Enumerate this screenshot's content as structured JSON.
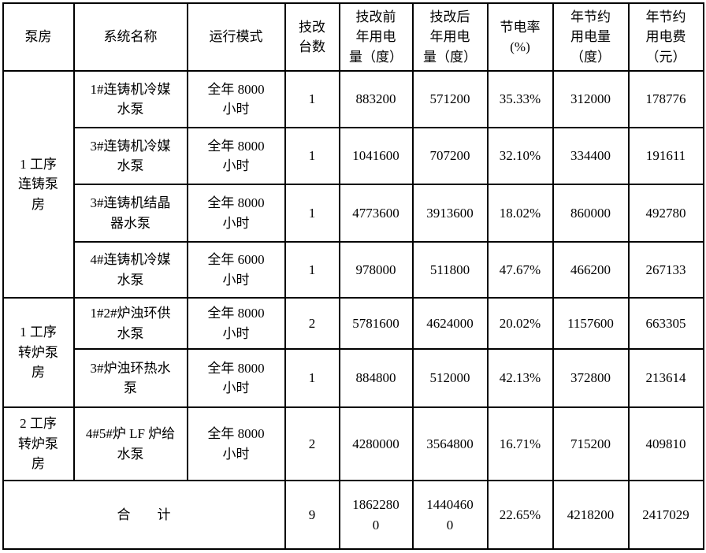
{
  "page": {
    "background_color": "#ffffff",
    "border_color": "#000000",
    "text_color": "#000000"
  },
  "table": {
    "columns": [
      {
        "label": "泵房"
      },
      {
        "label": "系统名称"
      },
      {
        "label": "运行模式"
      },
      {
        "label": "技改\n台数"
      },
      {
        "label": "技改前\n年用电\n量（度）"
      },
      {
        "label": "技改后\n年用电\n量（度）"
      },
      {
        "label": "节电率\n(%)"
      },
      {
        "label": "年节约\n用电量\n（度）"
      },
      {
        "label": "年节约\n用电费\n（元）"
      }
    ],
    "groups": [
      {
        "name": "1 工序\n连铸泵\n房",
        "rows": [
          {
            "system": "1#连铸机冷媒\n水泵",
            "mode": "全年 8000\n小时",
            "units": "1",
            "before": "883200",
            "after": "571200",
            "rate": "35.33%",
            "saving_kwh": "312000",
            "saving_fee": "178776"
          },
          {
            "system": "3#连铸机冷媒\n水泵",
            "mode": "全年 8000\n小时",
            "units": "1",
            "before": "1041600",
            "after": "707200",
            "rate": "32.10%",
            "saving_kwh": "334400",
            "saving_fee": "191611"
          },
          {
            "system": "3#连铸机结晶\n器水泵",
            "mode": "全年 8000\n小时",
            "units": "1",
            "before": "4773600",
            "after": "3913600",
            "rate": "18.02%",
            "saving_kwh": "860000",
            "saving_fee": "492780"
          },
          {
            "system": "4#连铸机冷媒\n水泵",
            "mode": "全年 6000\n小时",
            "units": "1",
            "before": "978000",
            "after": "511800",
            "rate": "47.67%",
            "saving_kwh": "466200",
            "saving_fee": "267133"
          }
        ]
      },
      {
        "name": "1 工序\n转炉泵\n房",
        "rows": [
          {
            "system": "1#2#炉浊环供\n水泵",
            "mode": "全年 8000\n小时",
            "units": "2",
            "before": "5781600",
            "after": "4624000",
            "rate": "20.02%",
            "saving_kwh": "1157600",
            "saving_fee": "663305"
          },
          {
            "system": "3#炉浊环热水\n泵",
            "mode": "全年 8000\n小时",
            "units": "1",
            "before": "884800",
            "after": "512000",
            "rate": "42.13%",
            "saving_kwh": "372800",
            "saving_fee": "213614"
          }
        ]
      },
      {
        "name": "2 工序\n转炉泵\n房",
        "rows": [
          {
            "system": "4#5#炉 LF 炉给\n水泵",
            "mode": "全年 8000\n小时",
            "units": "2",
            "before": "4280000",
            "after": "3564800",
            "rate": "16.71%",
            "saving_kwh": "715200",
            "saving_fee": "409810"
          }
        ]
      }
    ],
    "total": {
      "label": "合　　计",
      "units": "9",
      "before": "18622800",
      "after": "14404600",
      "rate": "22.65%",
      "saving_kwh": "4218200",
      "saving_fee": "2417029"
    }
  }
}
